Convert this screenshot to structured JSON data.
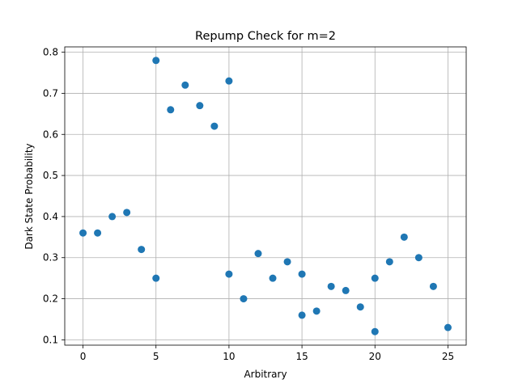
{
  "chart_data": {
    "type": "scatter",
    "title": "Repump Check for m=2",
    "xlabel": "Arbitrary",
    "ylabel": "Dark State Probability",
    "xlim": [
      -1.25,
      26.25
    ],
    "ylim": [
      0.087,
      0.813
    ],
    "xticks": [
      0,
      5,
      10,
      15,
      20,
      25
    ],
    "yticks": [
      0.1,
      0.2,
      0.3,
      0.4,
      0.5,
      0.6,
      0.7,
      0.8
    ],
    "grid": true,
    "marker_color": "#1f77b4",
    "points": [
      {
        "x": 0,
        "y": 0.36
      },
      {
        "x": 1,
        "y": 0.36
      },
      {
        "x": 2,
        "y": 0.4
      },
      {
        "x": 3,
        "y": 0.41
      },
      {
        "x": 4,
        "y": 0.32
      },
      {
        "x": 5,
        "y": 0.78
      },
      {
        "x": 5,
        "y": 0.25
      },
      {
        "x": 6,
        "y": 0.66
      },
      {
        "x": 7,
        "y": 0.72
      },
      {
        "x": 8,
        "y": 0.67
      },
      {
        "x": 9,
        "y": 0.62
      },
      {
        "x": 10,
        "y": 0.73
      },
      {
        "x": 10,
        "y": 0.26
      },
      {
        "x": 11,
        "y": 0.2
      },
      {
        "x": 12,
        "y": 0.31
      },
      {
        "x": 13,
        "y": 0.25
      },
      {
        "x": 14,
        "y": 0.29
      },
      {
        "x": 15,
        "y": 0.26
      },
      {
        "x": 15,
        "y": 0.16
      },
      {
        "x": 16,
        "y": 0.17
      },
      {
        "x": 17,
        "y": 0.23
      },
      {
        "x": 18,
        "y": 0.22
      },
      {
        "x": 19,
        "y": 0.18
      },
      {
        "x": 20,
        "y": 0.25
      },
      {
        "x": 20,
        "y": 0.12
      },
      {
        "x": 21,
        "y": 0.29
      },
      {
        "x": 22,
        "y": 0.35
      },
      {
        "x": 23,
        "y": 0.3
      },
      {
        "x": 24,
        "y": 0.23
      },
      {
        "x": 25,
        "y": 0.13
      }
    ]
  }
}
